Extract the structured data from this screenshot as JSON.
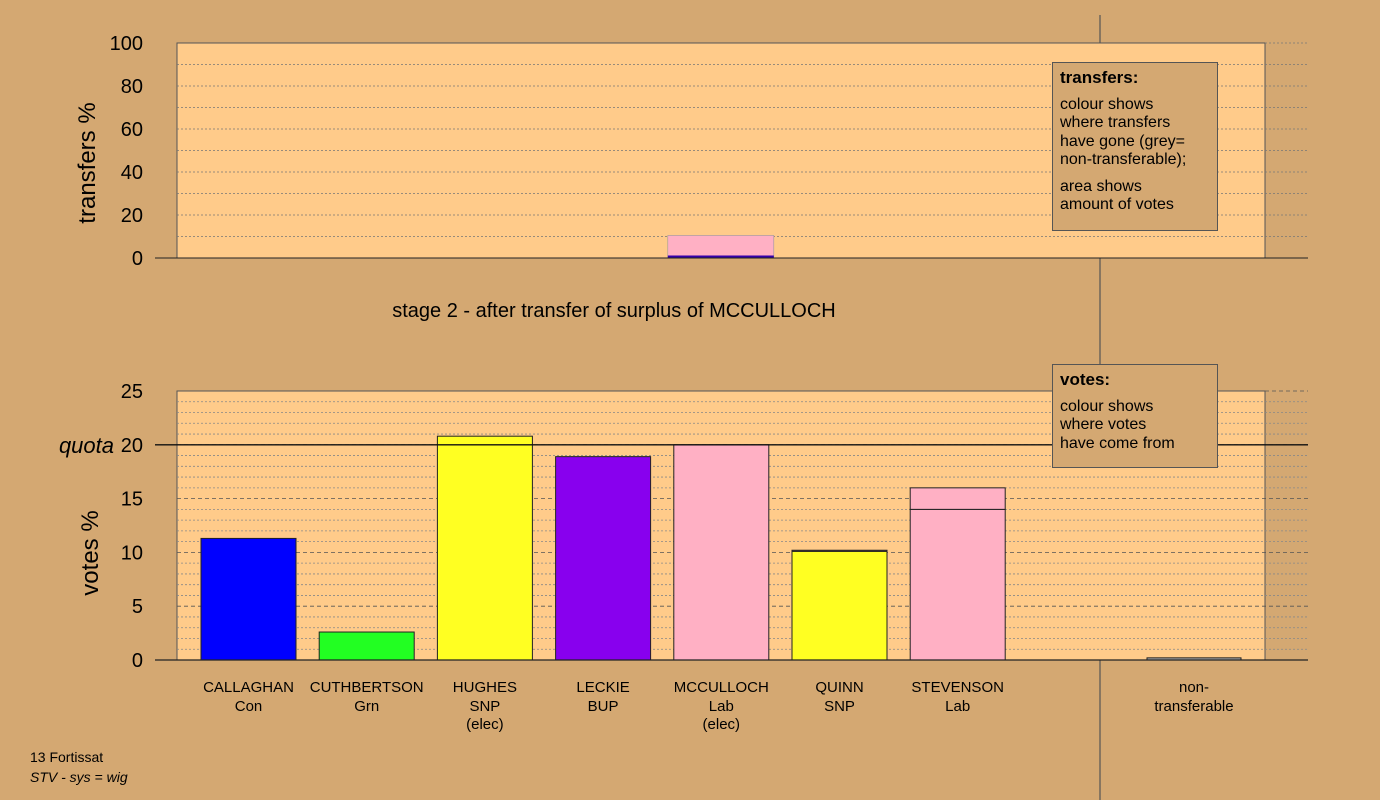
{
  "chart_data": {
    "type": "bar",
    "stage_title": "stage 2 - after transfer of surplus of MCCULLOCH",
    "transfers": {
      "ylabel": "transfers %",
      "ylim": [
        0,
        100
      ],
      "yticks": [
        0,
        20,
        40,
        60,
        80,
        100
      ],
      "bars": [
        {
          "candidate": "MCCULLOCH",
          "percent": 10.5,
          "color": "#ffb0c4"
        }
      ]
    },
    "votes": {
      "ylabel": "votes %",
      "ylim": [
        0,
        25
      ],
      "yticks": [
        0,
        5,
        10,
        15,
        20,
        25
      ],
      "quota": 20,
      "quota_label": "quota",
      "candidates": [
        {
          "name": "CALLAGHAN",
          "party": "Con",
          "elected": "",
          "segments": [
            {
              "value": 11.3,
              "color": "#0000ff"
            }
          ]
        },
        {
          "name": "CUTHBERTSON",
          "party": "Grn",
          "elected": "",
          "segments": [
            {
              "value": 2.6,
              "color": "#22ff22"
            }
          ]
        },
        {
          "name": "HUGHES",
          "party": "SNP",
          "elected": "(elec)",
          "segments": [
            {
              "value": 20.8,
              "color": "#ffff22"
            }
          ]
        },
        {
          "name": "LECKIE",
          "party": "BUP",
          "elected": "",
          "segments": [
            {
              "value": 18.9,
              "color": "#8800ee"
            }
          ]
        },
        {
          "name": "MCCULLOCH",
          "party": "Lab",
          "elected": "(elec)",
          "segments": [
            {
              "value": 20.0,
              "color": "#ffb0c4"
            }
          ]
        },
        {
          "name": "QUINN",
          "party": "SNP",
          "elected": "",
          "segments": [
            {
              "value": 10.1,
              "color": "#ffff22"
            },
            {
              "value": 0.1,
              "color": "#ffb0c4"
            }
          ]
        },
        {
          "name": "STEVENSON",
          "party": "Lab",
          "elected": "",
          "segments": [
            {
              "value": 14.0,
              "color": "#ffb0c4"
            },
            {
              "value": 2.0,
              "color": "#ffb0c4"
            }
          ]
        }
      ],
      "non_transferable": {
        "label_line1": "non-",
        "label_line2": "transferable",
        "value": 0.2,
        "color": "#aaaaaa"
      }
    }
  },
  "legends": {
    "transfers": {
      "title": "transfers:",
      "lines1": [
        "colour shows",
        "where transfers",
        "have gone (grey=",
        "non-transferable);"
      ],
      "lines2": [
        "area shows",
        "amount of votes"
      ]
    },
    "votes": {
      "title": "votes:",
      "lines1": [
        "colour shows",
        "where votes",
        "have come from"
      ]
    }
  },
  "footer": {
    "line1": "13 Fortissat",
    "line2": "STV - sys = wig"
  }
}
